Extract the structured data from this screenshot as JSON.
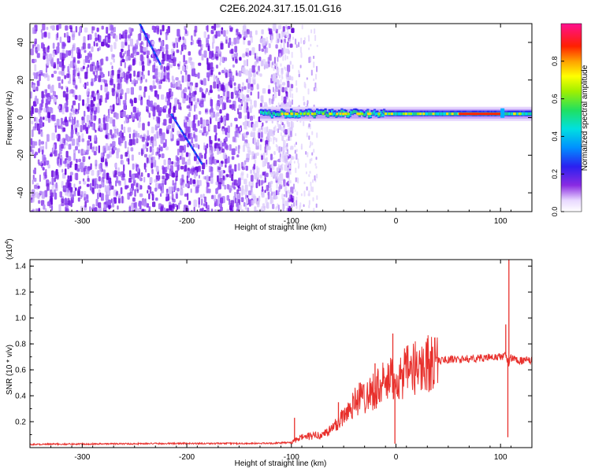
{
  "title": "C2E6.2024.317.15.01.G16",
  "chart_data": [
    {
      "type": "heatmap",
      "xlabel": "Height of straight line (km)",
      "ylabel": "Frequency (Hz)",
      "xlim": [
        -350,
        130
      ],
      "ylim": [
        -50,
        50
      ],
      "xticks": [
        "-300",
        "-200",
        "-100",
        "0",
        "100"
      ],
      "yticks": [
        "-40",
        "-20",
        "0",
        "20",
        "40"
      ],
      "colorbar": {
        "label": "Normalized spectral amplitude",
        "range": [
          0,
          1
        ],
        "ticks": [
          "0.0",
          "0.2",
          "0.4",
          "0.6",
          "0.8"
        ]
      },
      "features": {
        "noise_region_x": [
          -350,
          -120
        ],
        "sparse_region_x": [
          -120,
          -75
        ],
        "carrier_band_x": [
          -130,
          130
        ],
        "carrier_freq_hz": 2,
        "streaks": [
          {
            "x": [
              -245,
              -225
            ],
            "y": [
              50,
              28
            ]
          },
          {
            "x": [
              -215,
              -185
            ],
            "y": [
              2,
              -25
            ]
          }
        ]
      }
    },
    {
      "type": "line",
      "xlabel": "Height of straight line (km)",
      "ylabel": "SNR (10 * v/v)",
      "yscale_label": "(x10",
      "yscale_exp": "4",
      "xlim": [
        -350,
        130
      ],
      "ylim": [
        0,
        14500
      ],
      "xticks": [
        "-300",
        "-200",
        "-100",
        "0",
        "100"
      ],
      "yticks": [
        "0.2",
        "0.4",
        "0.6",
        "0.8",
        "1.0",
        "1.2",
        "1.4"
      ],
      "color": "#e8302c",
      "series": [
        {
          "x": [
            -350,
            -300,
            -250,
            -200,
            -150,
            -120,
            -100,
            -90,
            -80,
            -70,
            -60,
            -50,
            -40,
            -30,
            -20,
            -10,
            0,
            10,
            20,
            30,
            40,
            50,
            60,
            70,
            80,
            90,
            100,
            105,
            108,
            110,
            115,
            120,
            130
          ],
          "y": [
            250,
            280,
            300,
            320,
            320,
            330,
            400,
            800,
            900,
            1000,
            1500,
            2500,
            3500,
            4000,
            4500,
            5000,
            5300,
            5800,
            6200,
            6500,
            6700,
            6800,
            6800,
            6850,
            6900,
            6950,
            7000,
            7100,
            6500,
            6900,
            6800,
            6700,
            6700
          ],
          "spikes": [
            {
              "x": -97,
              "y": 2300
            },
            {
              "x": -55,
              "y": 3500
            },
            {
              "x": -35,
              "y": 5000
            },
            {
              "x": -20,
              "y": 6500
            },
            {
              "x": -3,
              "y": 8800
            },
            {
              "x": -1,
              "y": 300
            },
            {
              "x": 105,
              "y": 9500
            },
            {
              "x": 108,
              "y": 14500
            },
            {
              "x": 107,
              "y": 800
            }
          ]
        }
      ]
    }
  ]
}
